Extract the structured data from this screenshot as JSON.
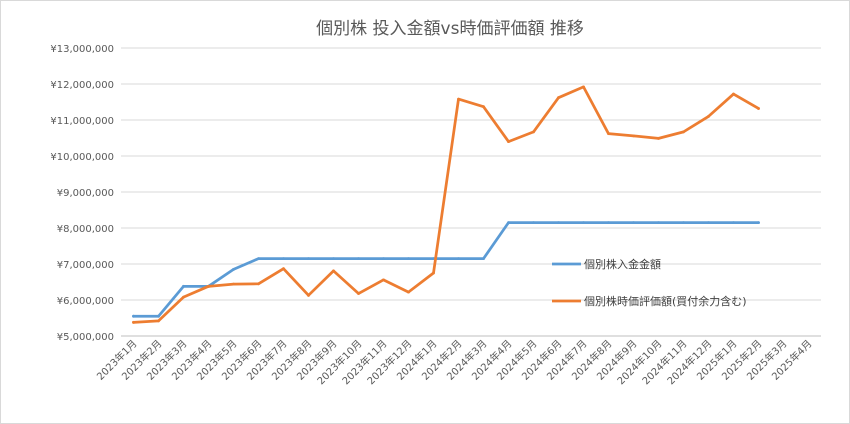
{
  "chart_data": {
    "type": "line",
    "title": "個別株  投入金額vs時価評価額  推移",
    "categories": [
      "2023年1月",
      "2023年2月",
      "2023年3月",
      "2023年4月",
      "2023年5月",
      "2023年6月",
      "2023年7月",
      "2023年8月",
      "2023年9月",
      "2023年10月",
      "2023年11月",
      "2023年12月",
      "2024年1月",
      "2024年2月",
      "2024年3月",
      "2024年4月",
      "2024年5月",
      "2024年6月",
      "2024年7月",
      "2024年8月",
      "2024年9月",
      "2024年10月",
      "2024年11月",
      "2024年12月",
      "2025年1月",
      "2025年2月",
      "2025年3月",
      "2025年4月"
    ],
    "ylim": [
      5000000,
      13000000
    ],
    "yticks": [
      5000000,
      6000000,
      7000000,
      8000000,
      9000000,
      10000000,
      11000000,
      12000000,
      13000000
    ],
    "ytick_labels": [
      "¥5,000,000",
      "¥6,000,000",
      "¥7,000,000",
      "¥8,000,000",
      "¥9,000,000",
      "¥10,000,000",
      "¥11,000,000",
      "¥12,000,000",
      "¥13,000,000"
    ],
    "grid": true,
    "legend_position": "right",
    "series": [
      {
        "name": "個別株入金金額",
        "color": "#5b9bd5",
        "values": [
          5550000,
          5550000,
          6380000,
          6380000,
          6850000,
          7150000,
          7150000,
          7150000,
          7150000,
          7150000,
          7150000,
          7150000,
          7150000,
          7150000,
          7150000,
          8150000,
          8150000,
          8150000,
          8150000,
          8150000,
          8150000,
          8150000,
          8150000,
          8150000,
          8150000,
          8150000,
          null,
          null
        ]
      },
      {
        "name": "個別株時価評価額(買付余力含む)",
        "color": "#ed7d31",
        "values": [
          5380000,
          5420000,
          6080000,
          6380000,
          6440000,
          6450000,
          6870000,
          6130000,
          6810000,
          6180000,
          6560000,
          6220000,
          6750000,
          11580000,
          11370000,
          10400000,
          10670000,
          11620000,
          11920000,
          10620000,
          10560000,
          10490000,
          10670000,
          11100000,
          11720000,
          11320000,
          null,
          null
        ]
      }
    ]
  }
}
